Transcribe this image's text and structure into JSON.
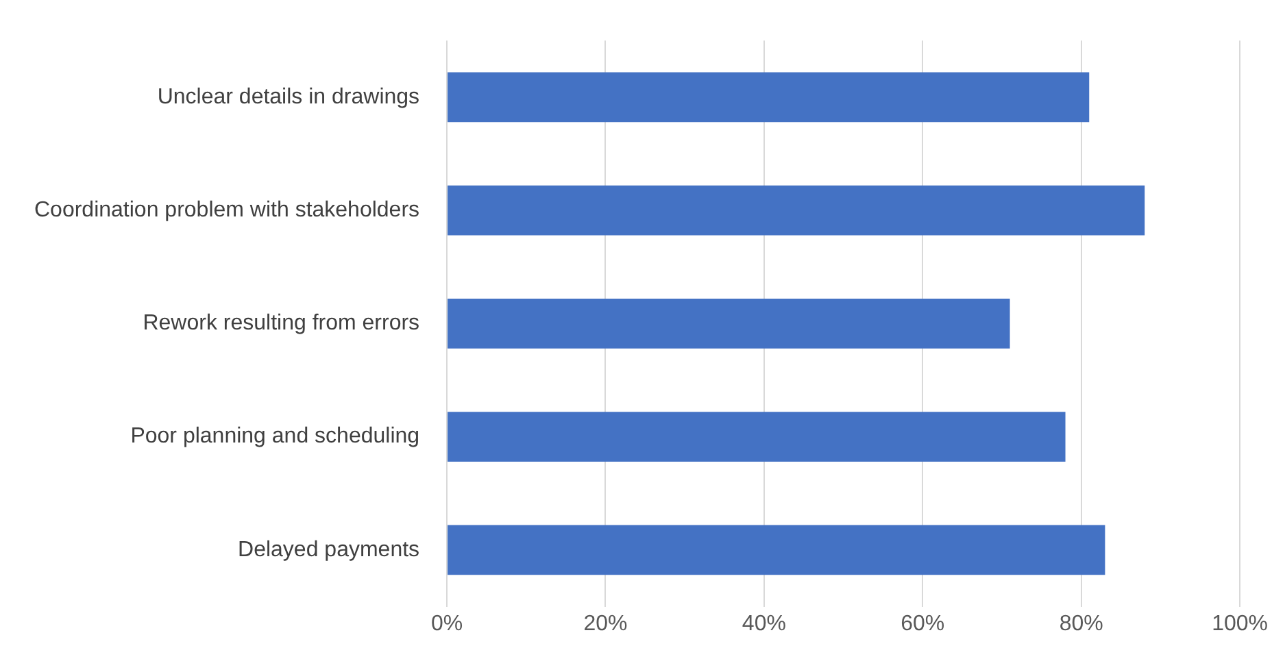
{
  "chart_data": {
    "type": "bar",
    "orientation": "horizontal",
    "categories": [
      "Unclear details in drawings",
      "Coordination problem with stakeholders",
      "Rework resulting from errors",
      "Poor planning and scheduling",
      "Delayed payments"
    ],
    "values": [
      81,
      88,
      71,
      78,
      83
    ],
    "color": "#4472c4",
    "xlim": [
      0,
      100
    ],
    "xticks": [
      {
        "value": 0,
        "label": "0%"
      },
      {
        "value": 20,
        "label": "20%"
      },
      {
        "value": 40,
        "label": "40%"
      },
      {
        "value": 60,
        "label": "60%"
      },
      {
        "value": 80,
        "label": "80%"
      },
      {
        "value": 100,
        "label": "100%"
      }
    ],
    "grid": "x"
  }
}
